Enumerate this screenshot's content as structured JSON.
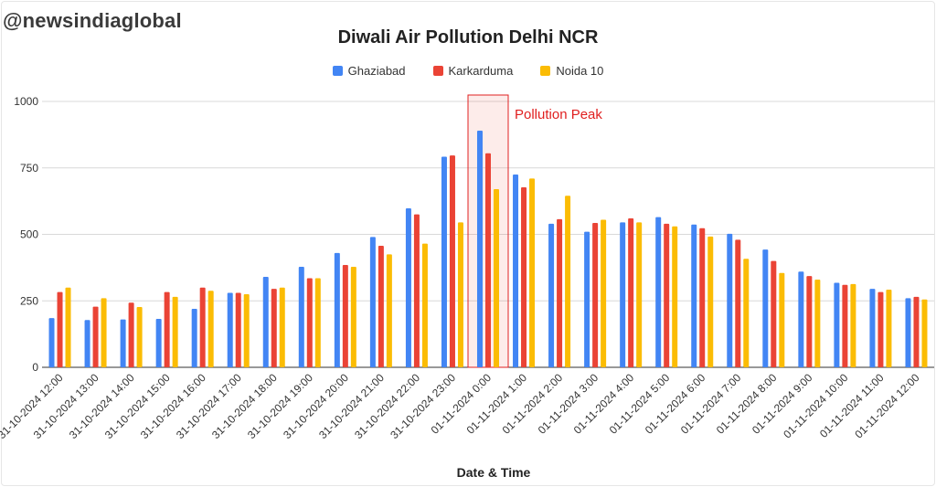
{
  "watermark": "@newsindiaglobal",
  "chart_data": {
    "type": "bar",
    "title": "Diwali Air Pollution Delhi NCR",
    "xlabel": "Date & Time",
    "ylabel": "",
    "ylim": [
      0,
      1000
    ],
    "yticks": [
      0,
      250,
      500,
      750,
      1000
    ],
    "grid": true,
    "legend_position": "top-center",
    "categories": [
      "31-10-2024 12:00",
      "31-10-2024 13:00",
      "31-10-2024 14:00",
      "31-10-2024 15:00",
      "31-10-2024 16:00",
      "31-10-2024 17:00",
      "31-10-2024 18:00",
      "31-10-2024 19:00",
      "31-10-2024 20:00",
      "31-10-2024 21:00",
      "31-10-2024 22:00",
      "31-10-2024 23:00",
      "01-11-2024 0:00",
      "01-11-2024 1:00",
      "01-11-2024 2:00",
      "01-11-2024 3:00",
      "01-11-2024 4:00",
      "01-11-2024 5:00",
      "01-11-2024 6:00",
      "01-11-2024 7:00",
      "01-11-2024 8:00",
      "01-11-2024 9:00",
      "01-11-2024 10:00",
      "01-11-2024 11:00",
      "01-11-2024 12:00"
    ],
    "series": [
      {
        "name": "Ghaziabad",
        "color": "#4285f4",
        "values": [
          185,
          178,
          180,
          182,
          220,
          280,
          340,
          378,
          430,
          490,
          598,
          792,
          890,
          725,
          540,
          510,
          545,
          565,
          537,
          502,
          443,
          360,
          318,
          295,
          260
        ]
      },
      {
        "name": "Karkarduma",
        "color": "#ea4335",
        "values": [
          283,
          228,
          243,
          283,
          300,
          280,
          295,
          335,
          385,
          457,
          575,
          797,
          805,
          677,
          557,
          543,
          560,
          540,
          523,
          480,
          400,
          343,
          310,
          283,
          265
        ]
      },
      {
        "name": "Noida 10",
        "color": "#fbbc04",
        "values": [
          300,
          260,
          227,
          265,
          288,
          275,
          300,
          335,
          378,
          425,
          465,
          545,
          670,
          710,
          645,
          555,
          545,
          530,
          492,
          408,
          355,
          330,
          313,
          292,
          255
        ]
      }
    ],
    "annotations": [
      {
        "text": "Pollution Peak",
        "category": "01-11-2024 0:00",
        "color": "#e02020"
      }
    ]
  }
}
